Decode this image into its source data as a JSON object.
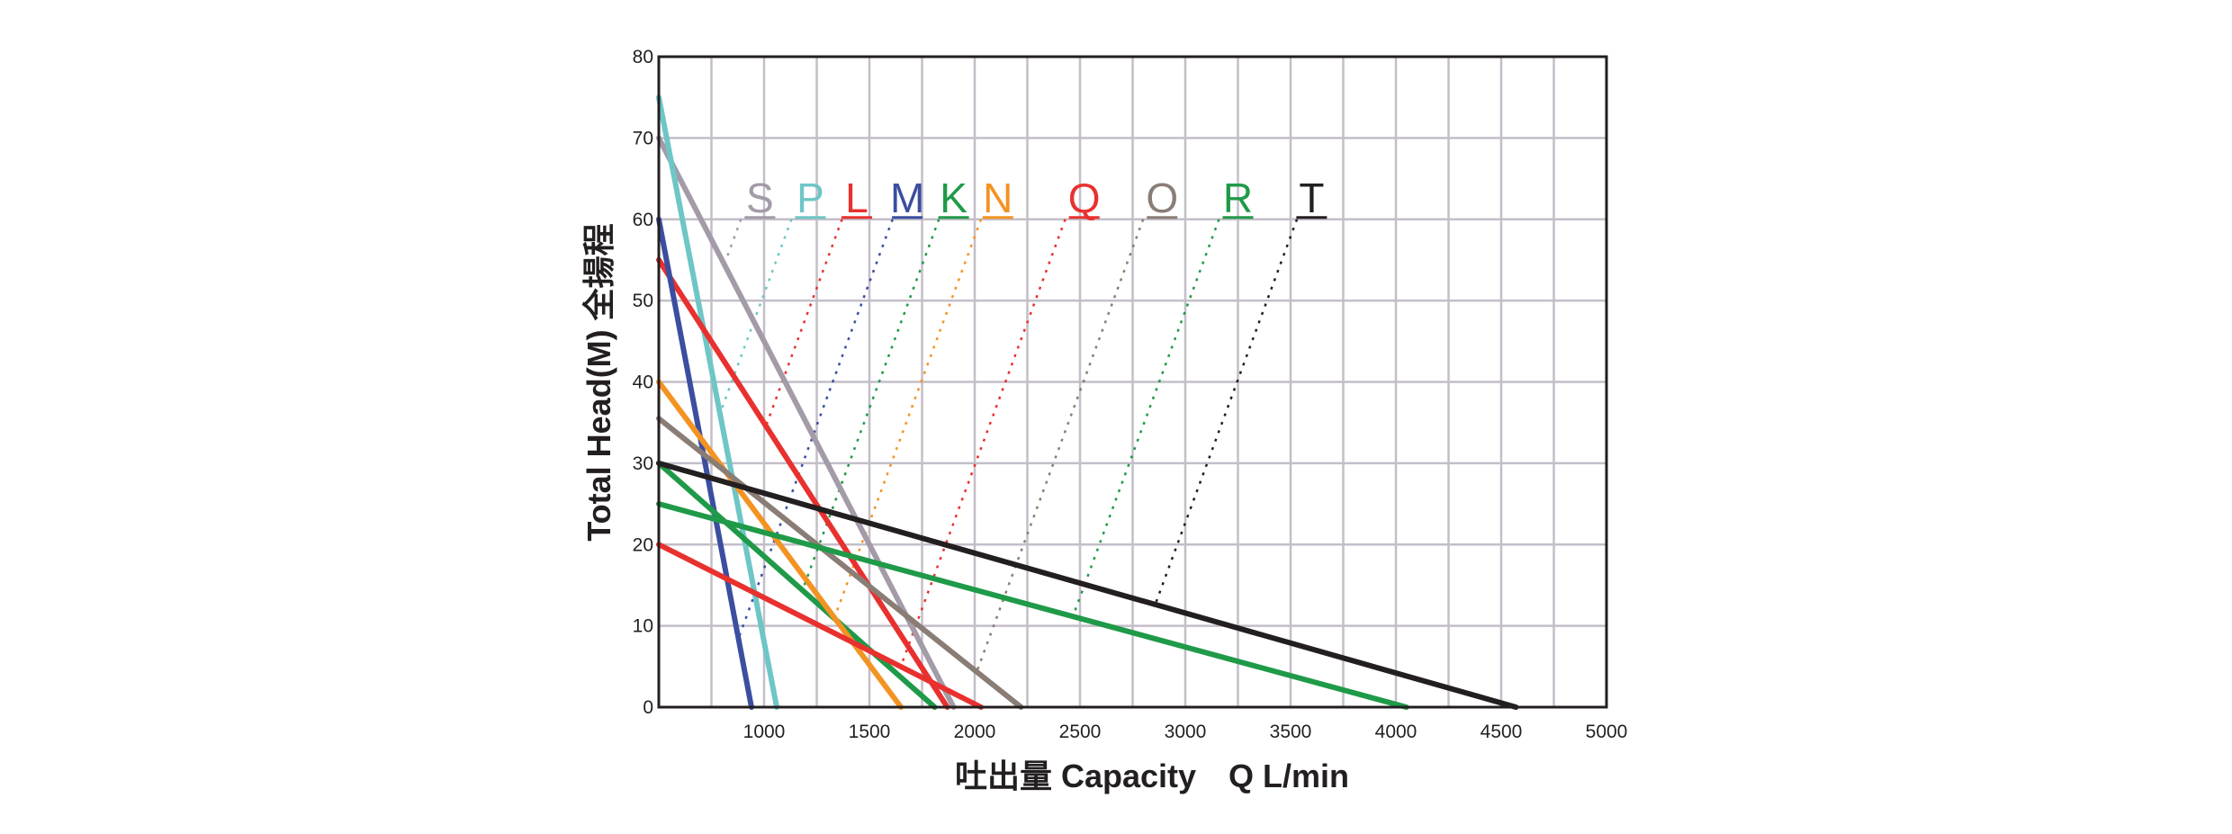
{
  "chart_data": {
    "type": "line",
    "title": "",
    "xlabel": "吐出量 Capacity　Q L/min",
    "ylabel": "Total Head(M) 全揚程",
    "xlim": [
      500,
      5000
    ],
    "ylim": [
      0,
      80
    ],
    "x_ticks": [
      1000,
      1500,
      2000,
      2500,
      3000,
      3500,
      4000,
      4500,
      5000
    ],
    "y_ticks": [
      0,
      10,
      20,
      30,
      40,
      50,
      60,
      70,
      80
    ],
    "x_grid_step": 250,
    "y_grid_step": 10,
    "grid": true,
    "series": [
      {
        "name": "S",
        "color": "#a39ba8",
        "points": [
          [
            500,
            70
          ],
          [
            1900,
            0
          ]
        ],
        "label_x": 980,
        "guide_start_x": 890
      },
      {
        "name": "P",
        "color": "#6ec6c6",
        "points": [
          [
            500,
            75
          ],
          [
            1060,
            0
          ]
        ],
        "label_x": 1220,
        "guide_start_x": 1130
      },
      {
        "name": "L",
        "color": "#e8312f",
        "points": [
          [
            500,
            55
          ],
          [
            1870,
            0
          ]
        ],
        "label_x": 1440,
        "guide_start_x": 1370
      },
      {
        "name": "M",
        "color": "#3b4ea0",
        "points": [
          [
            500,
            60
          ],
          [
            940,
            0
          ]
        ],
        "label_x": 1680,
        "guide_start_x": 1610
      },
      {
        "name": "K",
        "color": "#1f9a48",
        "points": [
          [
            500,
            30
          ],
          [
            1810,
            0
          ]
        ],
        "label_x": 1900,
        "guide_start_x": 1830
      },
      {
        "name": "N",
        "color": "#f39322",
        "points": [
          [
            500,
            40
          ],
          [
            1650,
            0
          ]
        ],
        "label_x": 2110,
        "guide_start_x": 2030
      },
      {
        "name": "Q",
        "color": "#e8312f",
        "points": [
          [
            500,
            20
          ],
          [
            2030,
            0
          ]
        ],
        "label_x": 2520,
        "guide_start_x": 2430
      },
      {
        "name": "O",
        "color": "#8a7d76",
        "points": [
          [
            500,
            35.5
          ],
          [
            2220,
            0
          ]
        ],
        "label_x": 2890,
        "guide_start_x": 2800
      },
      {
        "name": "R",
        "color": "#1f9a48",
        "points": [
          [
            500,
            25
          ],
          [
            4050,
            0
          ]
        ],
        "label_x": 3250,
        "guide_start_x": 3160
      },
      {
        "name": "T",
        "color": "#231f20",
        "points": [
          [
            500,
            30
          ],
          [
            4570,
            0
          ]
        ],
        "label_x": 3600,
        "guide_start_x": 3530
      }
    ]
  }
}
